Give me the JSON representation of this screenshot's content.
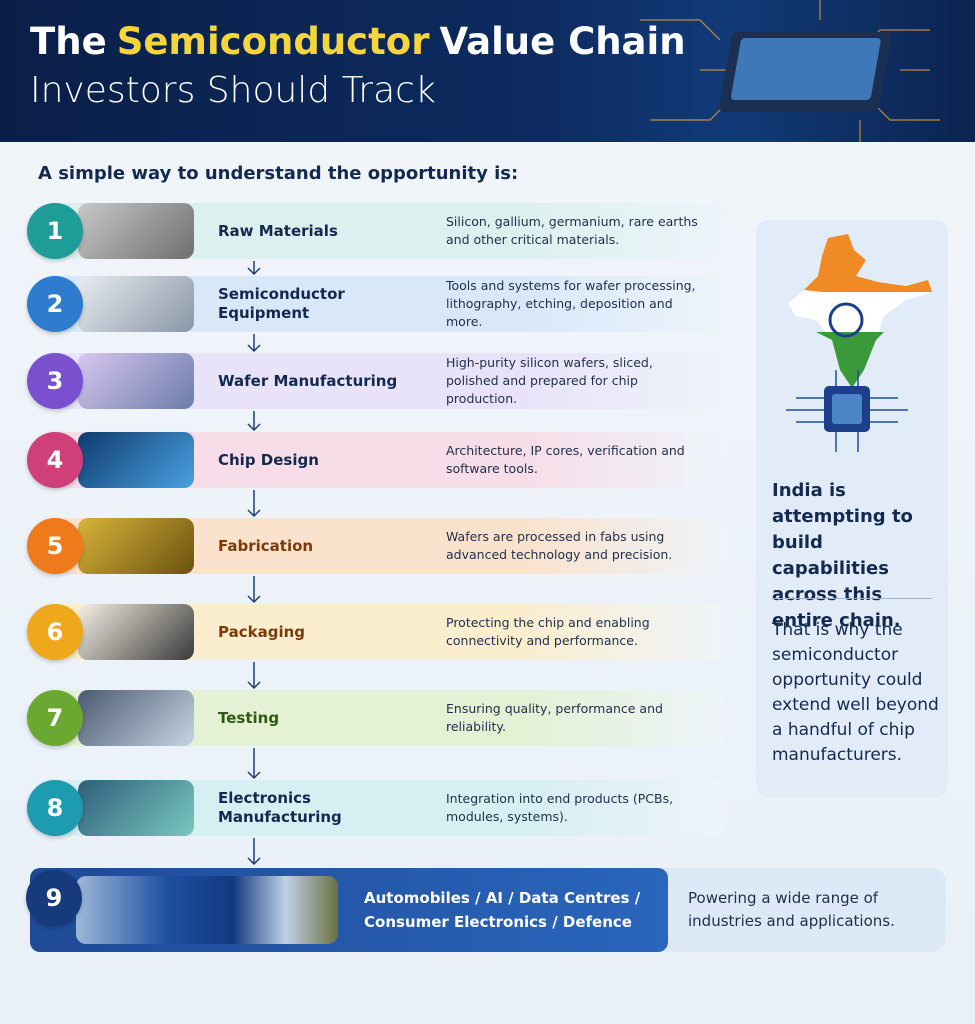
{
  "header": {
    "title": [
      "The",
      "Semiconductor",
      "Value Chain"
    ],
    "subtitle": "Investors Should Track"
  },
  "intro": "A simple way to understand the opportunity is:",
  "steps": [
    {
      "number": 1,
      "title": "Raw Materials",
      "description": "Silicon, gallium, germanium, rare earths and other critical materials."
    },
    {
      "number": 2,
      "title": "Semiconductor Equipment",
      "description": "Tools and systems for wafer processing, lithography, etching, deposition and more."
    },
    {
      "number": 3,
      "title": "Wafer Manufacturing",
      "description": "High-purity silicon wafers, sliced, polished and prepared for chip production."
    },
    {
      "number": 4,
      "title": "Chip Design",
      "description": "Architecture, IP cores, verification and software tools."
    },
    {
      "number": 5,
      "title": "Fabrication",
      "description": "Wafers are processed in fabs using advanced technology and precision."
    },
    {
      "number": 6,
      "title": "Packaging",
      "description": "Protecting the chip and enabling connectivity and performance."
    },
    {
      "number": 7,
      "title": "Testing",
      "description": "Ensuring quality, performance and reliability."
    },
    {
      "number": 8,
      "title": "Electronics Manufacturing",
      "description": "Integration into end products (PCBs, modules, systems)."
    },
    {
      "number": 9,
      "title": "Automobiles / AI / Data Centres / Consumer Electronics / Defence",
      "description": "Powering a wide range of industries and applications."
    }
  ],
  "side_panel": {
    "highlight": "India is attempting to build capabilities across this entire chain.",
    "body": "That is why the semiconductor opportunity could extend well beyond a handful of chip manufacturers."
  }
}
